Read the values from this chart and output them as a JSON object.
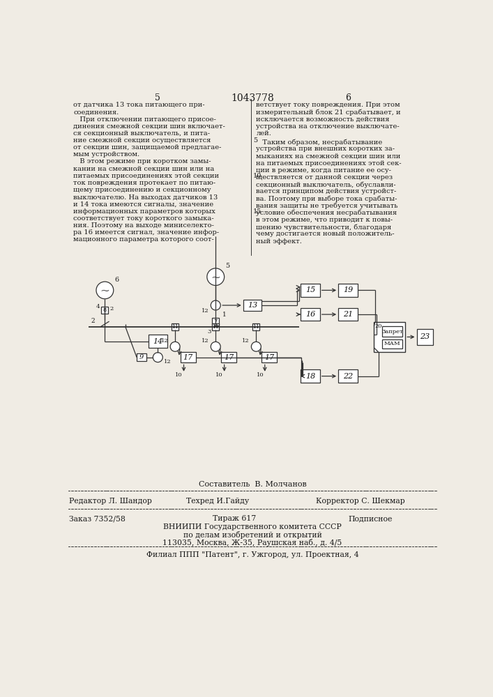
{
  "page_color": "#f0ece4",
  "text_color": "#1a1a1a",
  "page_num_left": "5",
  "page_num_center": "1043778",
  "page_num_right": "6",
  "col_left_text": [
    "от датчика 13 тока питающего при-",
    "соединения.",
    "   При отключении питающего присое-",
    "динения смежной секции шин включает-",
    "ся секционный выключатель, и пита-",
    "ние смежной секции осуществляется",
    "от секции шин, защищаемой предлагае-",
    "мым устройством.",
    "   В этом режиме при коротком замы-",
    "кании на смежной секции шин или на",
    "питаемых присоединениях этой секции",
    "ток повреждения протекает по питаю-",
    "щему присоединению и секционному",
    "выключателю. На выходах датчиков 13",
    "и 14 тока имеются сигналы, значение",
    "информационных параметров которых",
    "соответствует току короткого замыка-",
    "ния. Поэтому на выходе миниселекто-",
    "ра 16 имеется сигнал, значение инфор-",
    "мационного параметра которого соот-"
  ],
  "col_right_lines": [
    "ветствует току повреждения. При этом",
    "измерительный блок 21 срабатывает, и",
    "исключается возможность действия",
    "устройства на отключение выключате-",
    "лей."
  ],
  "col_right_text2": [
    "   Таким образом, несрабатывание",
    "устройства при внешних коротких за-",
    "мыканиях на смежной секции шин или",
    "на питаемых присоединениях этой сек-",
    "ции в режиме, когда питание ее осу-",
    "ществляется от данной секции через",
    "секционный выключатель, обуславли-",
    "вается принципом действия устройст-",
    "ва. Поэтому при выборе тока срабаты-",
    "вания защиты не требуется учитывать",
    "условие обеспечения несрабатывания",
    "в этом режиме, что приводит к повы-",
    "шению чувствительности, благодаря",
    "чему достигается новый положитель-",
    "ный эффект."
  ],
  "footer_composer": "Составитель  В. Молчанов",
  "footer_editor": "Редактор Л. Шандор",
  "footer_techred": "Техред И.Гайду",
  "footer_corrector": "Корректор С. Шекмар",
  "footer_order": "Заказ 7352/58",
  "footer_tirazh": "Тираж 617",
  "footer_podpisnoe": "Подписное",
  "footer_org1": "ВНИИПИ Государственного комитета СССР",
  "footer_org2": "по делам изобретений и открытий",
  "footer_org3": "113035, Москва, Ж-35, Раушская наб., д. 4/5",
  "footer_branch": "Филиал ППП \"Патент\", г. Ужгород, ул. Проектная, 4"
}
